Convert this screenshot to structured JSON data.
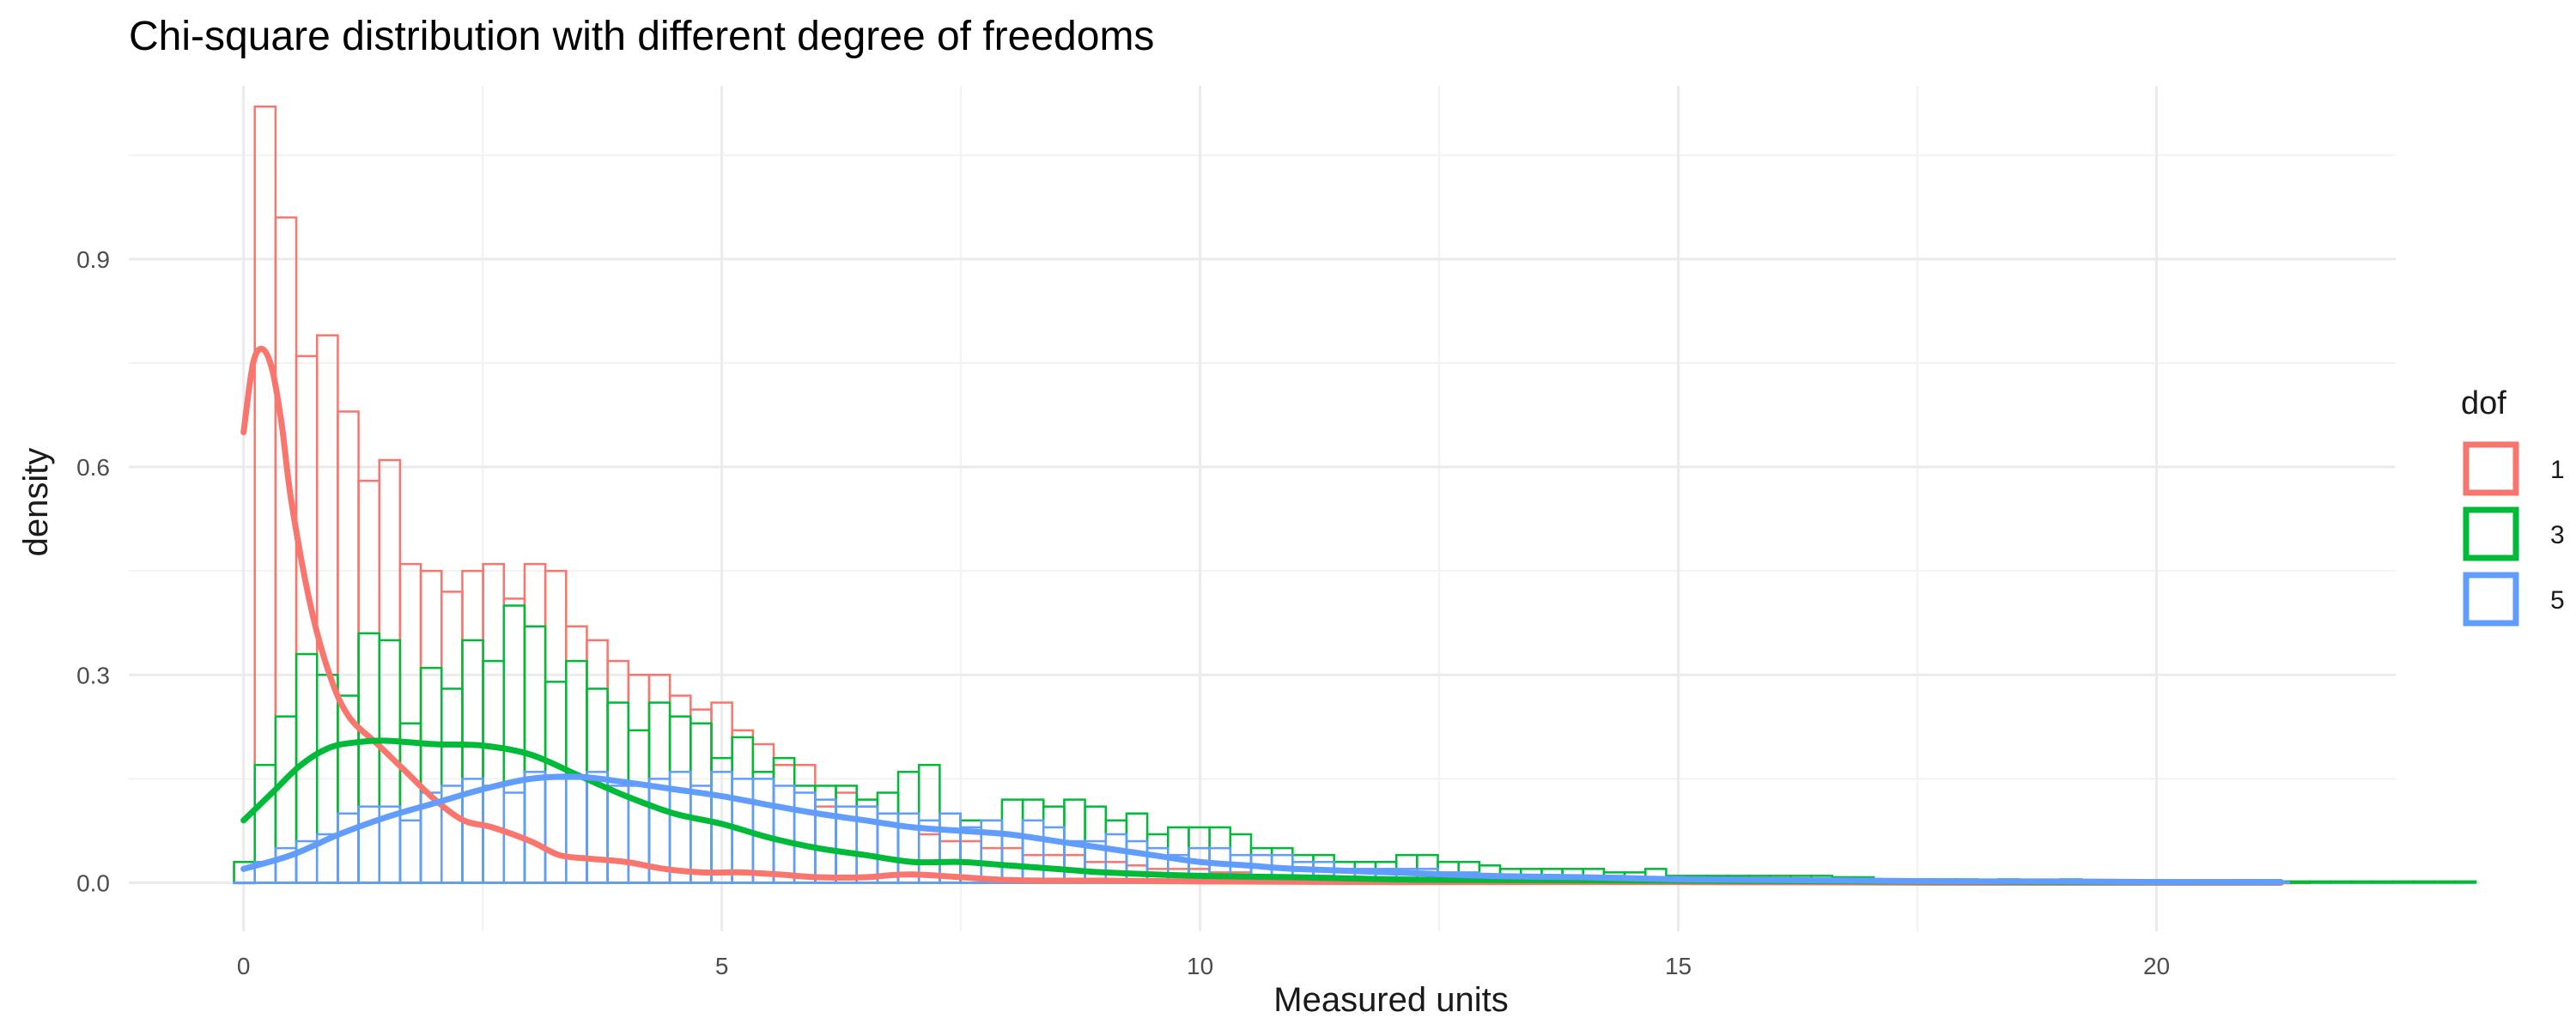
{
  "chart_data": {
    "type": "histogram",
    "title": "Chi-square distribution with different degree of freedoms",
    "xlabel": "Measured units",
    "ylabel": "density",
    "xlim": [
      -1.2,
      22.5
    ],
    "ylim": [
      -0.07,
      1.15
    ],
    "x_ticks": [
      0,
      5,
      10,
      15,
      20
    ],
    "y_ticks": [
      0.0,
      0.3,
      0.6,
      0.9
    ],
    "x_tick_labels": [
      "0",
      "5",
      "10",
      "15",
      "20"
    ],
    "y_tick_labels": [
      "0.0",
      "0.3",
      "0.6",
      "0.9"
    ],
    "grid": true,
    "bin_start": -0.1,
    "bin_width": 0.217,
    "legend": {
      "title": "dof",
      "position": "right",
      "entries": [
        {
          "label": "1",
          "color": "#F8766D"
        },
        {
          "label": "3",
          "color": "#00BA38"
        },
        {
          "label": "5",
          "color": "#619CFF"
        }
      ]
    },
    "series": [
      {
        "name": "1",
        "color": "#F8766D",
        "histogram": [
          0.03,
          1.12,
          0.96,
          0.76,
          0.79,
          0.68,
          0.58,
          0.61,
          0.46,
          0.45,
          0.42,
          0.45,
          0.46,
          0.41,
          0.46,
          0.45,
          0.37,
          0.35,
          0.32,
          0.3,
          0.3,
          0.27,
          0.25,
          0.26,
          0.22,
          0.2,
          0.17,
          0.17,
          0.11,
          0.13,
          0.11,
          0.1,
          0.08,
          0.07,
          0.06,
          0.06,
          0.05,
          0.05,
          0.04,
          0.04,
          0.04,
          0.03,
          0.03,
          0.025,
          0.02,
          0.02,
          0.02,
          0.015,
          0.015,
          0.01,
          0.01,
          0.01,
          0.01,
          0.008,
          0.007,
          0.006,
          0.005,
          0.005,
          0.004,
          0.004,
          0.003,
          0.003,
          0.003,
          0.002,
          0.002,
          0.002,
          0.002,
          0.001,
          0.001,
          0.001,
          0.001,
          0.001,
          0.001,
          0,
          0,
          0,
          0,
          0,
          0,
          0,
          0,
          0,
          0,
          0,
          0,
          0,
          0,
          0,
          0,
          0,
          0,
          0,
          0,
          0,
          0,
          0,
          0,
          0,
          0,
          0
        ],
        "density": {
          "x": [
            0,
            0.1,
            0.2,
            0.3,
            0.4,
            0.5,
            0.7,
            0.9,
            1.1,
            1.4,
            1.7,
            2,
            2.3,
            2.6,
            3,
            3.3,
            3.6,
            4,
            4.4,
            4.8,
            5.2,
            5.6,
            6,
            6.5,
            7,
            8,
            9,
            10,
            12,
            15,
            18,
            21.3
          ],
          "y": [
            0.65,
            0.75,
            0.77,
            0.74,
            0.66,
            0.55,
            0.4,
            0.3,
            0.24,
            0.2,
            0.16,
            0.12,
            0.09,
            0.08,
            0.06,
            0.04,
            0.035,
            0.03,
            0.02,
            0.015,
            0.015,
            0.012,
            0.008,
            0.008,
            0.012,
            0.004,
            0.003,
            0.002,
            0.001,
            0.001,
            0.0,
            0.0
          ]
        }
      },
      {
        "name": "3",
        "color": "#00BA38",
        "histogram": [
          0.03,
          0.17,
          0.24,
          0.33,
          0.3,
          0.27,
          0.36,
          0.35,
          0.23,
          0.31,
          0.28,
          0.35,
          0.32,
          0.4,
          0.37,
          0.29,
          0.32,
          0.28,
          0.26,
          0.22,
          0.26,
          0.24,
          0.23,
          0.18,
          0.21,
          0.16,
          0.18,
          0.14,
          0.14,
          0.14,
          0.12,
          0.13,
          0.16,
          0.17,
          0.1,
          0.09,
          0.09,
          0.12,
          0.12,
          0.11,
          0.12,
          0.11,
          0.09,
          0.1,
          0.07,
          0.08,
          0.08,
          0.08,
          0.07,
          0.05,
          0.05,
          0.04,
          0.04,
          0.03,
          0.03,
          0.03,
          0.04,
          0.04,
          0.03,
          0.03,
          0.025,
          0.02,
          0.02,
          0.02,
          0.02,
          0.02,
          0.015,
          0.015,
          0.02,
          0.01,
          0.01,
          0.01,
          0.01,
          0.01,
          0.01,
          0.01,
          0.01,
          0.008,
          0.008,
          0.005,
          0.005,
          0.005,
          0.005,
          0.005,
          0.004,
          0.005,
          0.003,
          0.003,
          0.005,
          0.003,
          0.003,
          0.003,
          0.003,
          0.002,
          0.002,
          0.002,
          0.002,
          0.002,
          0.002,
          0.002,
          0.002,
          0.002,
          0.002,
          0.002,
          0.002,
          0.002,
          0.002,
          0.002
        ],
        "density": {
          "x": [
            0,
            0.3,
            0.6,
            0.9,
            1.2,
            1.5,
            2,
            2.5,
            3,
            3.5,
            4,
            4.5,
            5,
            5.5,
            6,
            6.5,
            7,
            7.5,
            8,
            8.5,
            9,
            10,
            11,
            12,
            13,
            15,
            17,
            19,
            21.3
          ],
          "y": [
            0.09,
            0.13,
            0.17,
            0.195,
            0.203,
            0.205,
            0.2,
            0.198,
            0.185,
            0.155,
            0.125,
            0.1,
            0.085,
            0.065,
            0.05,
            0.04,
            0.03,
            0.03,
            0.025,
            0.02,
            0.015,
            0.01,
            0.008,
            0.005,
            0.004,
            0.003,
            0.002,
            0.001,
            0.001
          ]
        }
      },
      {
        "name": "5",
        "color": "#619CFF",
        "histogram": [
          0.0,
          0.03,
          0.05,
          0.06,
          0.07,
          0.1,
          0.11,
          0.11,
          0.09,
          0.13,
          0.14,
          0.15,
          0.14,
          0.13,
          0.16,
          0.15,
          0.15,
          0.16,
          0.14,
          0.14,
          0.15,
          0.16,
          0.14,
          0.16,
          0.15,
          0.15,
          0.14,
          0.13,
          0.12,
          0.11,
          0.11,
          0.1,
          0.1,
          0.09,
          0.1,
          0.08,
          0.09,
          0.07,
          0.09,
          0.08,
          0.06,
          0.06,
          0.07,
          0.06,
          0.05,
          0.04,
          0.05,
          0.05,
          0.04,
          0.04,
          0.04,
          0.03,
          0.03,
          0.02,
          0.02,
          0.02,
          0.02,
          0.02,
          0.015,
          0.015,
          0.01,
          0.01,
          0.01,
          0.01,
          0.01,
          0.01,
          0.01,
          0.008,
          0.008,
          0.008,
          0.007,
          0.006,
          0.006,
          0.005,
          0.005,
          0.005,
          0.004,
          0.004,
          0.004,
          0.003,
          0.003,
          0.003,
          0.003,
          0.003,
          0.002,
          0.002,
          0.002,
          0.002,
          0.002,
          0.002,
          0.002,
          0.001,
          0.001,
          0.001,
          0.001,
          0.001,
          0.001,
          0.001,
          0.001
        ],
        "density": {
          "x": [
            0,
            0.5,
            1,
            1.5,
            2,
            2.5,
            3,
            3.5,
            4,
            4.5,
            5,
            5.5,
            6,
            6.5,
            7,
            7.5,
            8,
            8.5,
            9,
            9.5,
            10,
            10.5,
            11,
            12,
            13,
            14,
            15,
            16,
            17,
            18,
            19,
            20,
            21.3
          ],
          "y": [
            0.02,
            0.04,
            0.07,
            0.095,
            0.115,
            0.135,
            0.15,
            0.153,
            0.145,
            0.135,
            0.125,
            0.112,
            0.1,
            0.09,
            0.08,
            0.075,
            0.07,
            0.06,
            0.05,
            0.04,
            0.03,
            0.025,
            0.02,
            0.015,
            0.01,
            0.008,
            0.005,
            0.004,
            0.003,
            0.002,
            0.002,
            0.001,
            0.001
          ]
        }
      }
    ]
  }
}
